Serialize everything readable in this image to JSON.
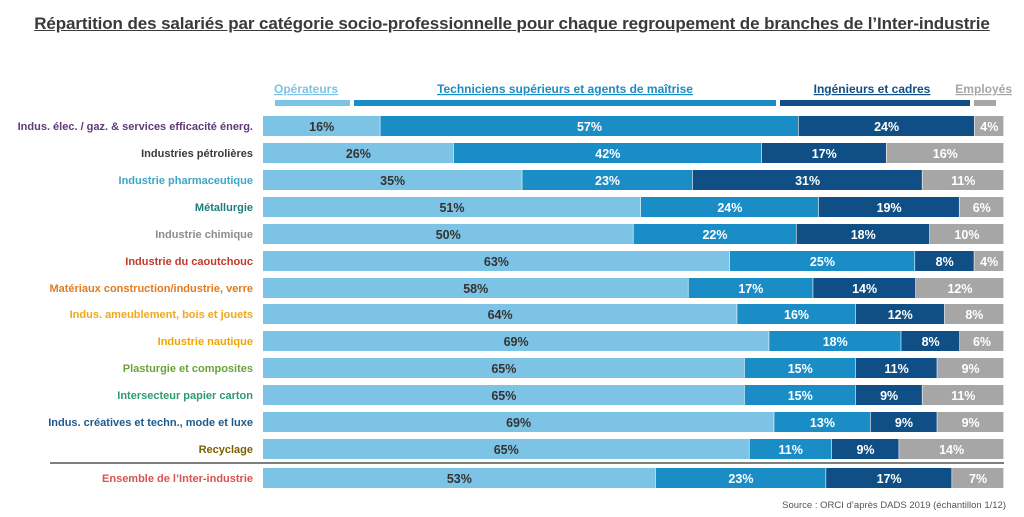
{
  "chart_data": {
    "type": "bar",
    "stacked": true,
    "orientation": "horizontal",
    "percent": true,
    "title": "Répartition des salariés par catégorie socio-professionnelle pour chaque regroupement de branches de l’Inter-industrie",
    "source": "Source : ORCI d’après DADS 2019 (échantillon 1/12)",
    "legend_position": "top",
    "series": [
      {
        "name": "Opérateurs",
        "color": "#7cc3e6",
        "values": [
          16,
          26,
          35,
          51,
          50,
          63,
          58,
          64,
          69,
          65,
          65,
          69,
          65,
          53
        ]
      },
      {
        "name": "Techniciens supérieurs et agents de maîtrise",
        "color": "#1a8cc6",
        "values": [
          57,
          42,
          23,
          24,
          22,
          25,
          17,
          16,
          18,
          15,
          15,
          13,
          11,
          23
        ]
      },
      {
        "name": "Ingénieurs et cadres",
        "color": "#0f4f85",
        "values": [
          24,
          17,
          31,
          19,
          18,
          8,
          14,
          12,
          8,
          11,
          9,
          9,
          9,
          17
        ]
      },
      {
        "name": "Employés",
        "color": "#a6a6a6",
        "values": [
          4,
          16,
          11,
          6,
          10,
          4,
          12,
          8,
          6,
          9,
          11,
          9,
          14,
          7
        ]
      }
    ],
    "categories": [
      {
        "label": "Indus. élec. / gaz. & services efficacité énerg.",
        "color": "#5f3a78"
      },
      {
        "label": "Industries pétrolières",
        "color": "#3a3a3a"
      },
      {
        "label": "Industrie pharmaceutique",
        "color": "#3ba6c8"
      },
      {
        "label": "Métallurgie",
        "color": "#1e7d7a"
      },
      {
        "label": "Industrie chimique",
        "color": "#8c8c8c"
      },
      {
        "label": "Industrie du caoutchouc",
        "color": "#c0392b"
      },
      {
        "label": "Matériaux construction/industrie, verre",
        "color": "#e07b1f"
      },
      {
        "label": "Indus. ameublement, bois et jouets",
        "color": "#f2a71b"
      },
      {
        "label": "Industrie nautique",
        "color": "#f0a500"
      },
      {
        "label": "Plasturgie et composites",
        "color": "#6aa33a"
      },
      {
        "label": "Intersecteur papier carton",
        "color": "#2e9b6f"
      },
      {
        "label": "Indus. créatives et techn., mode et luxe",
        "color": "#1d5a8c"
      },
      {
        "label": "Recyclage",
        "color": "#7d6000"
      },
      {
        "label": "Ensemble de l’Inter-industrie",
        "color": "#d9534f"
      }
    ]
  }
}
